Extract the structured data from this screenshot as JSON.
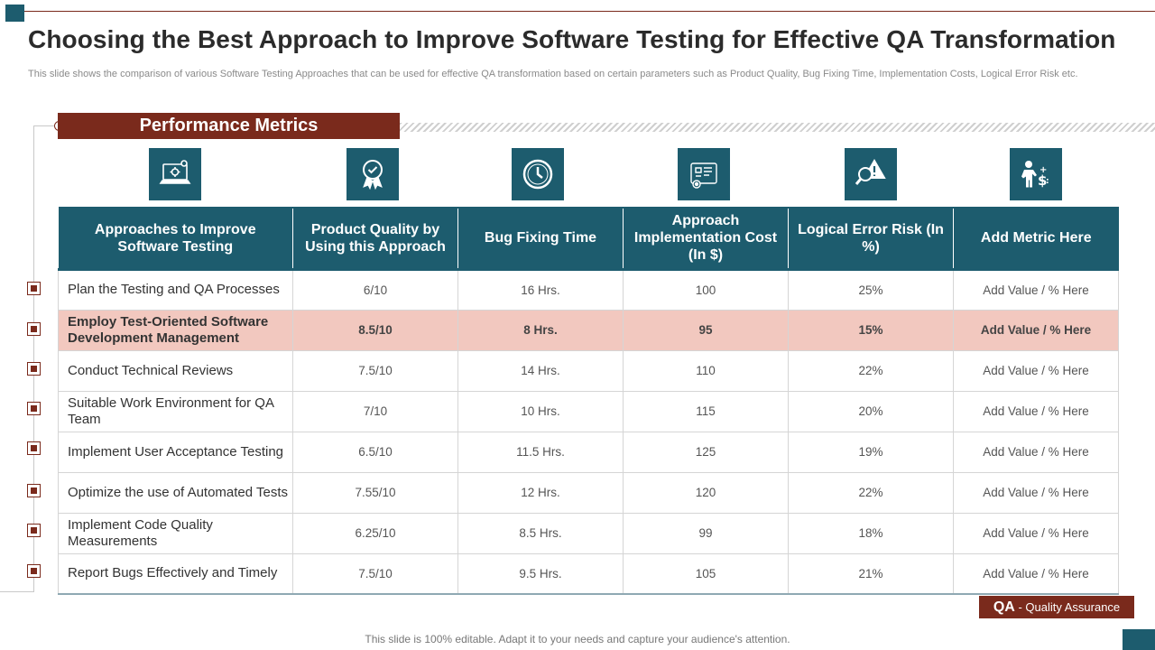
{
  "title": "Choosing the Best Approach to Improve Software Testing for Effective QA Transformation",
  "subtitle": "This slide shows the comparison of various Software Testing Approaches that can be used for effective QA transformation based on certain parameters such as Product Quality, Bug Fixing Time, Implementation Costs, Logical Error Risk etc.",
  "banner": "Performance Metrics",
  "colors": {
    "teal": "#1d5c6e",
    "maroon": "#7a2a1c",
    "highlight": "#f2c8bf"
  },
  "icons": [
    "laptop-settings-icon",
    "award-badge-icon",
    "clock-icon",
    "blueprint-gear-icon",
    "warning-magnifier-icon",
    "person-dollar-icon"
  ],
  "table": {
    "headers": [
      "Approaches to Improve Software Testing",
      "Product Quality by Using this Approach",
      "Bug Fixing Time",
      "Approach Implementation Cost (In $)",
      "Logical Error Risk (In %)",
      "Add Metric Here"
    ],
    "rows": [
      {
        "approach": "Plan the Testing and QA Processes",
        "quality": "6/10",
        "time": "16 Hrs.",
        "cost": "100",
        "risk": "25%",
        "extra": "Add Value / % Here"
      },
      {
        "approach": "Employ Test-Oriented Software Development Management",
        "quality": "8.5/10",
        "time": "8 Hrs.",
        "cost": "95",
        "risk": "15%",
        "extra": "Add Value / % Here"
      },
      {
        "approach": "Conduct Technical Reviews",
        "quality": "7.5/10",
        "time": "14 Hrs.",
        "cost": "110",
        "risk": "22%",
        "extra": "Add Value / % Here"
      },
      {
        "approach": "Suitable Work Environment for QA Team",
        "quality": "7/10",
        "time": "10 Hrs.",
        "cost": "115",
        "risk": "20%",
        "extra": "Add Value / % Here"
      },
      {
        "approach": "Implement User Acceptance Testing",
        "quality": "6.5/10",
        "time": "11.5 Hrs.",
        "cost": "125",
        "risk": "19%",
        "extra": "Add Value / % Here"
      },
      {
        "approach": "Optimize the use of Automated Tests",
        "quality": "7.55/10",
        "time": "12 Hrs.",
        "cost": "120",
        "risk": "22%",
        "extra": "Add Value / % Here"
      },
      {
        "approach": "Implement Code Quality Measurements",
        "quality": "6.25/10",
        "time": "8.5 Hrs.",
        "cost": "99",
        "risk": "18%",
        "extra": "Add Value / % Here"
      },
      {
        "approach": "Report Bugs Effectively and Timely",
        "quality": "7.5/10",
        "time": "9.5 Hrs.",
        "cost": "105",
        "risk": "21%",
        "extra": "Add Value / % Here"
      }
    ]
  },
  "badge": {
    "abbr": "QA",
    "text": " - Quality Assurance"
  },
  "footer": "This slide is 100% editable. Adapt it to your needs and capture your audience's attention."
}
